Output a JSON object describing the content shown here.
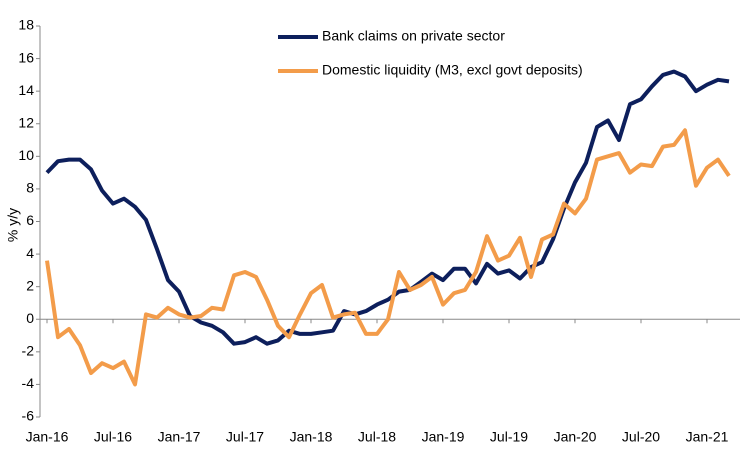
{
  "chart_data": {
    "type": "line",
    "y_label": "% y/y",
    "categories": [
      "Jan-16",
      null,
      null,
      null,
      null,
      null,
      "Jul-16",
      null,
      null,
      null,
      null,
      null,
      "Jan-17",
      null,
      null,
      null,
      null,
      null,
      "Jul-17",
      null,
      null,
      null,
      null,
      null,
      "Jan-18",
      null,
      null,
      null,
      null,
      null,
      "Jul-18",
      null,
      null,
      null,
      null,
      null,
      "Jan-19",
      null,
      null,
      null,
      null,
      null,
      "Jul-19",
      null,
      null,
      null,
      null,
      null,
      "Jan-20",
      null,
      null,
      null,
      null,
      null,
      "Jul-20",
      null,
      null,
      null,
      null,
      null,
      "Jan-21",
      null,
      null
    ],
    "series": [
      {
        "name": "Bank claims on private sector",
        "color": "#0d1f5c",
        "values": [
          9.0,
          9.7,
          9.8,
          9.8,
          9.2,
          7.9,
          7.1,
          7.4,
          6.9,
          6.1,
          4.3,
          2.4,
          1.7,
          0.2,
          -0.2,
          -0.4,
          -0.8,
          -1.5,
          -1.4,
          -1.1,
          -1.5,
          -1.3,
          -0.7,
          -0.9,
          -0.9,
          -0.8,
          -0.7,
          0.5,
          0.3,
          0.5,
          0.9,
          1.2,
          1.7,
          1.8,
          2.3,
          2.8,
          2.4,
          3.1,
          3.1,
          2.2,
          3.4,
          2.8,
          3.0,
          2.5,
          3.2,
          3.5,
          4.9,
          6.8,
          8.4,
          9.6,
          11.8,
          12.2,
          11.0,
          13.2,
          13.5,
          14.3,
          15.0,
          15.2,
          14.9,
          14.0,
          14.4,
          14.7,
          14.6
        ]
      },
      {
        "name": "Domestic liquidity (M3, excl govt deposits)",
        "color": "#f39c4a",
        "values": [
          3.6,
          -1.1,
          -0.6,
          -1.6,
          -3.3,
          -2.7,
          -3.0,
          -2.6,
          -4.0,
          0.3,
          0.1,
          0.7,
          0.3,
          0.1,
          0.2,
          0.7,
          0.6,
          2.7,
          2.9,
          2.6,
          1.2,
          -0.4,
          -1.1,
          0.3,
          1.6,
          2.1,
          0.1,
          0.3,
          0.4,
          -0.9,
          -0.9,
          0.0,
          2.9,
          1.8,
          2.1,
          2.6,
          0.9,
          1.6,
          1.8,
          2.9,
          5.1,
          3.6,
          3.9,
          5.0,
          2.6,
          4.9,
          5.2,
          7.1,
          6.5,
          7.4,
          9.8,
          10.0,
          10.2,
          9.0,
          9.5,
          9.4,
          10.6,
          10.7,
          11.6,
          8.2,
          9.3,
          9.8,
          8.8
        ]
      }
    ],
    "ylim": [
      -6,
      18
    ],
    "yticks": [
      -6,
      -4,
      -2,
      0,
      2,
      4,
      6,
      8,
      10,
      12,
      14,
      16,
      18
    ]
  }
}
